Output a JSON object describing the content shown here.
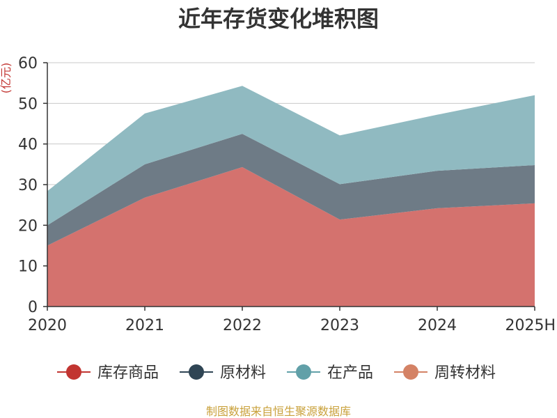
{
  "chart_data": {
    "type": "area",
    "stacked": true,
    "title": "近年存货变化堆积图",
    "ylabel": "(亿元)",
    "xlabel": "",
    "categories": [
      "2020",
      "2021",
      "2022",
      "2023",
      "2024",
      "2025H"
    ],
    "ylim": [
      0,
      60
    ],
    "yticks": [
      0,
      10,
      20,
      30,
      40,
      50,
      60
    ],
    "grid": true,
    "legend_position": "bottom",
    "series": [
      {
        "name": "库存商品",
        "values": [
          15.0,
          26.8,
          34.3,
          21.4,
          24.2,
          25.4
        ],
        "color": "#c23531",
        "area_color": "#d4726e"
      },
      {
        "name": "原材料",
        "values": [
          5.0,
          8.2,
          8.2,
          8.7,
          9.2,
          9.4
        ],
        "color": "#2f4554",
        "area_color": "#6e7b86"
      },
      {
        "name": "在产品",
        "values": [
          8.4,
          12.5,
          11.8,
          12.0,
          13.8,
          17.2
        ],
        "color": "#61a0a8",
        "area_color": "#90bac1"
      },
      {
        "name": "周转材料",
        "values": [
          0.0,
          0.0,
          0.0,
          0.0,
          0.0,
          0.0
        ],
        "color": "#d48265",
        "area_color": "#d48265"
      }
    ]
  },
  "colors": {
    "axis": "#333333",
    "grid": "#c8c8c8",
    "unit": "#c23531",
    "source": "#c9a13b"
  },
  "source_note": "制图数据来自恒生聚源数据库"
}
